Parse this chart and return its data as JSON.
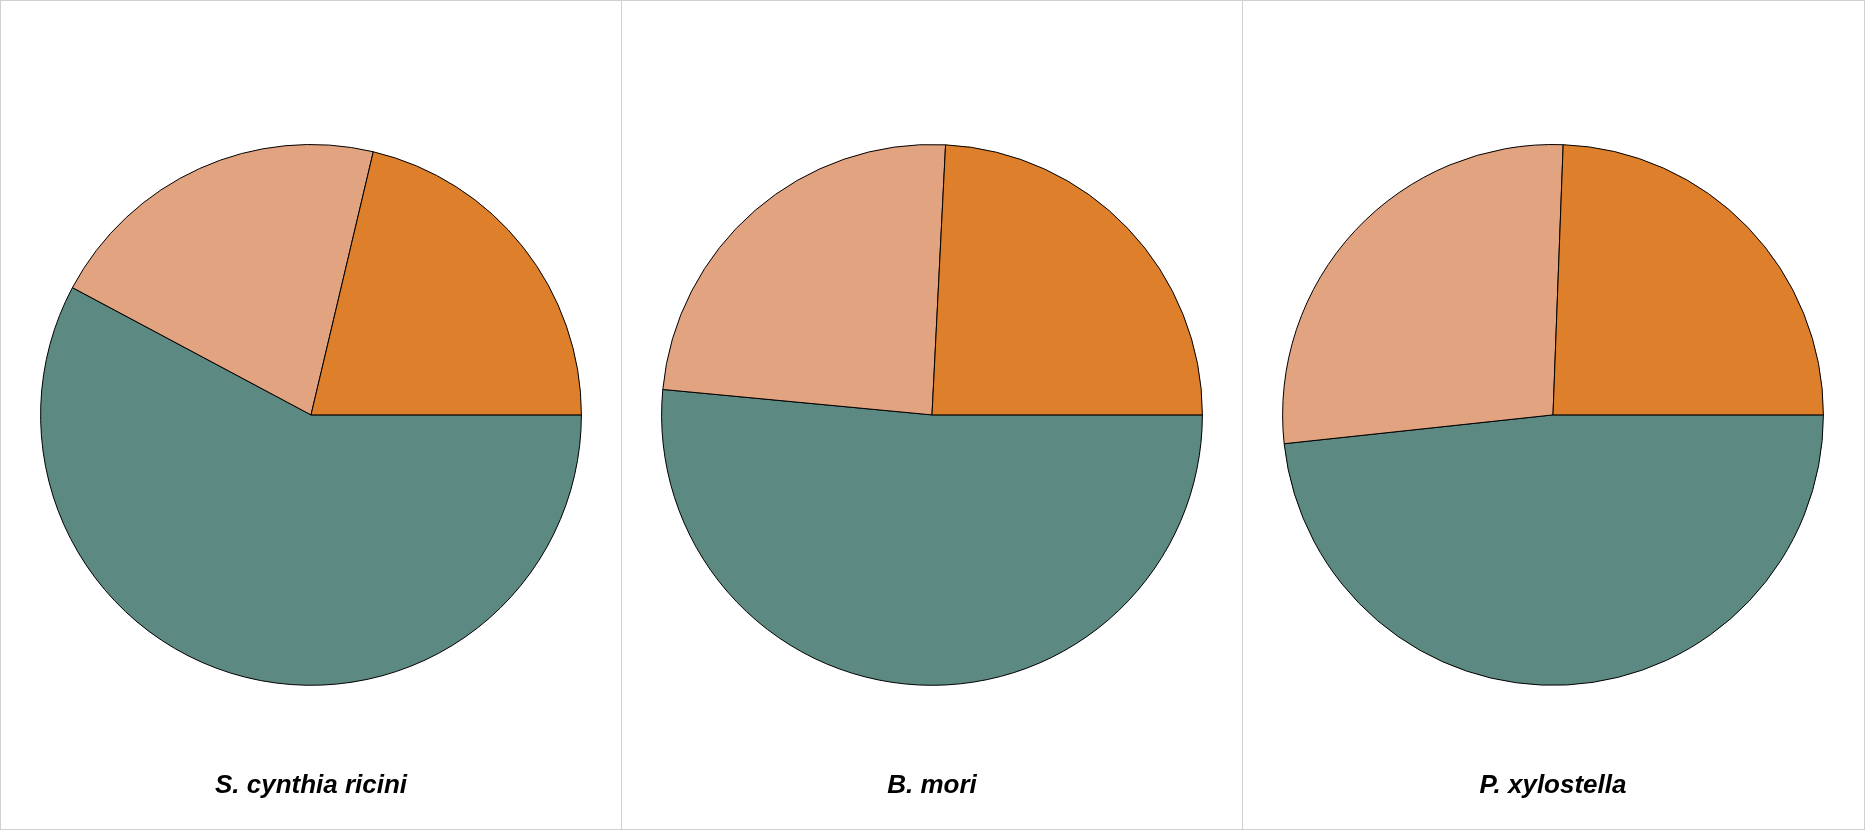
{
  "chart_data": [
    {
      "type": "pie",
      "title": "S. cynthia ricini",
      "categories": [
        null,
        null,
        null
      ],
      "values": [
        57.8,
        20.9,
        21.3
      ],
      "colors": [
        "#5c8a82",
        "#e2a380",
        "#dd7f2b"
      ]
    },
    {
      "type": "pie",
      "title": "B. mori",
      "categories": [
        null,
        null,
        null
      ],
      "values": [
        51.5,
        24.3,
        24.2
      ],
      "colors": [
        "#5c8a82",
        "#e2a380",
        "#dd7f2b"
      ]
    },
    {
      "type": "pie",
      "title": "P. xylostella",
      "categories": [
        null,
        null,
        null
      ],
      "values": [
        48.3,
        27.3,
        24.4
      ],
      "colors": [
        "#5c8a82",
        "#e2a380",
        "#dd7f2b"
      ]
    }
  ]
}
